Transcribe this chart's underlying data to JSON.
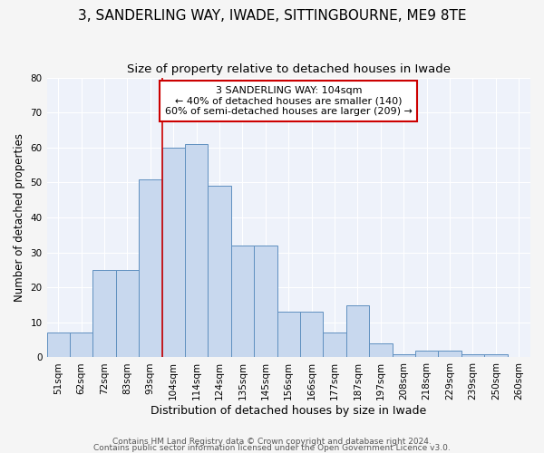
{
  "title": "3, SANDERLING WAY, IWADE, SITTINGBOURNE, ME9 8TE",
  "subtitle": "Size of property relative to detached houses in Iwade",
  "xlabel": "Distribution of detached houses by size in Iwade",
  "ylabel": "Number of detached properties",
  "bins": [
    "51sqm",
    "62sqm",
    "72sqm",
    "83sqm",
    "93sqm",
    "104sqm",
    "114sqm",
    "124sqm",
    "135sqm",
    "145sqm",
    "156sqm",
    "166sqm",
    "177sqm",
    "187sqm",
    "197sqm",
    "208sqm",
    "218sqm",
    "229sqm",
    "239sqm",
    "250sqm",
    "260sqm"
  ],
  "values": [
    7,
    7,
    25,
    25,
    51,
    60,
    61,
    49,
    32,
    32,
    13,
    13,
    7,
    15,
    4,
    1,
    2,
    2,
    1,
    1,
    0
  ],
  "bar_color": "#c8d8ee",
  "bar_edge_color": "#6090c0",
  "vline_x_index": 5,
  "vline_color": "#cc0000",
  "annotation_text": "3 SANDERLING WAY: 104sqm\n← 40% of detached houses are smaller (140)\n60% of semi-detached houses are larger (209) →",
  "annotation_box_color": "#ffffff",
  "annotation_box_edge": "#cc0000",
  "ylim": [
    0,
    80
  ],
  "yticks": [
    0,
    10,
    20,
    30,
    40,
    50,
    60,
    70,
    80
  ],
  "footer_line1": "Contains HM Land Registry data © Crown copyright and database right 2024.",
  "footer_line2": "Contains public sector information licensed under the Open Government Licence v3.0.",
  "bg_color": "#eef2fa",
  "grid_color": "#ffffff",
  "title_fontsize": 11,
  "subtitle_fontsize": 9.5,
  "ylabel_fontsize": 8.5,
  "xlabel_fontsize": 9,
  "tick_fontsize": 7.5,
  "annot_fontsize": 8,
  "footer_fontsize": 6.5
}
